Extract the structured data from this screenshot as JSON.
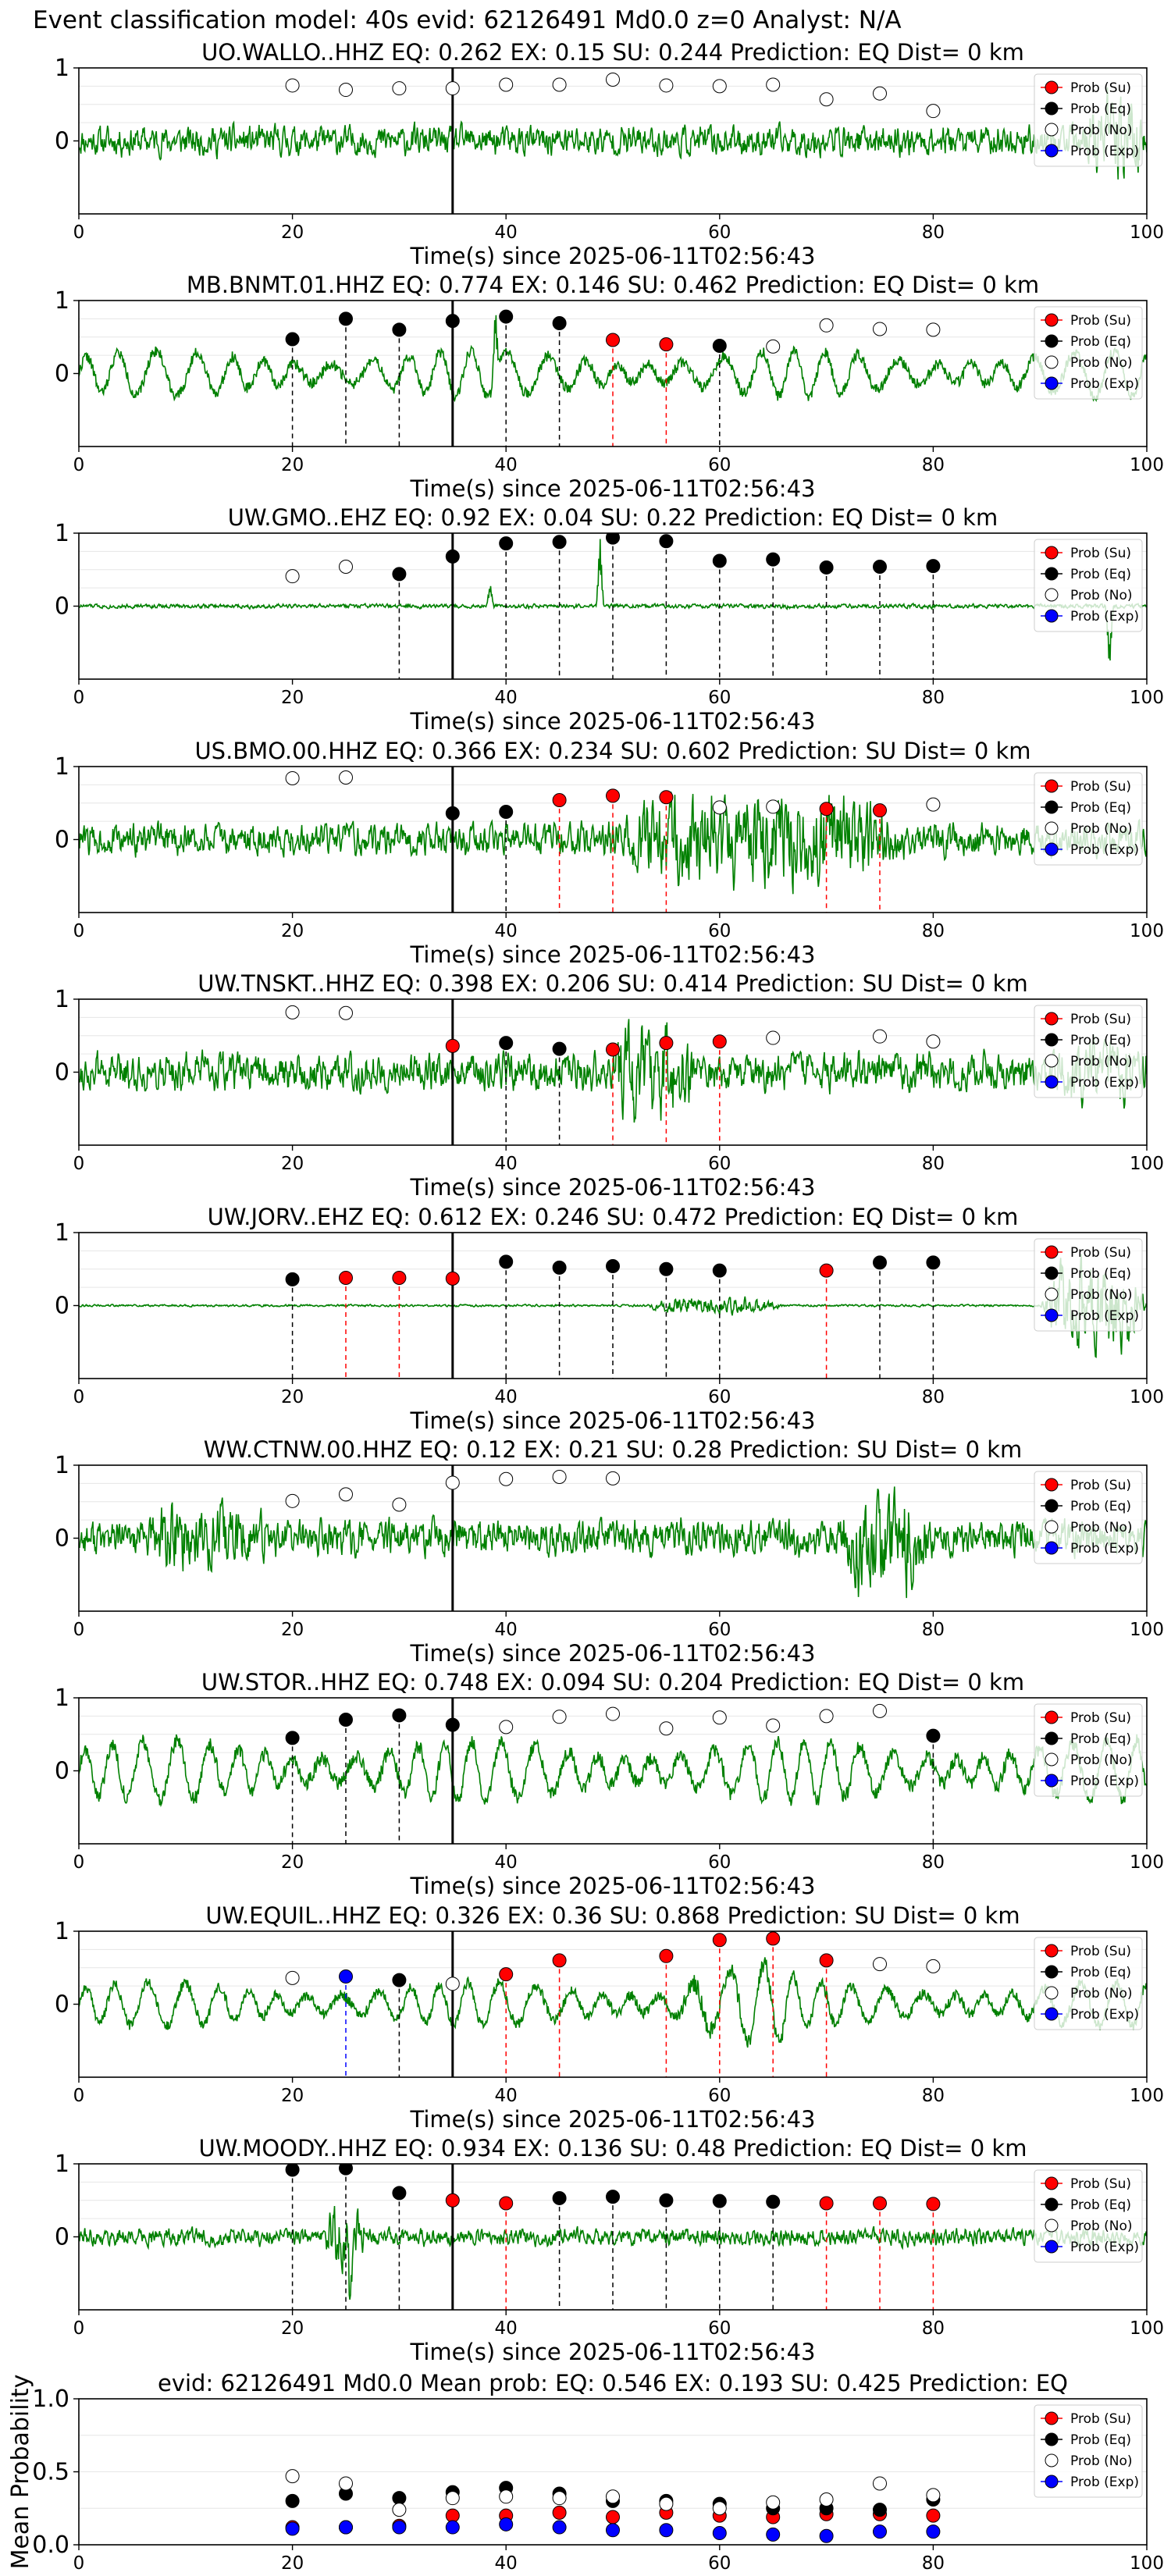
{
  "figure": {
    "title": "Event classification model: 40s evid: 62126491 Md0.0 z=0 Analyst: N/A"
  },
  "legend_labels": [
    "Prob (Su)",
    "Prob (Eq)",
    "Prob (No)",
    "Prob (Exp)"
  ],
  "colors": {
    "su": "#ff0000",
    "eq": "#000000",
    "no": "#ffffff",
    "exp": "#0000ff",
    "waveform": "#008000",
    "vline_su": "#ff0000",
    "vline_eq": "#000000",
    "vline_exp": "#0000ff"
  },
  "chart_data": [
    {
      "type": "scatter",
      "title": "UO.WALLO..HHZ   EQ: 0.262  EX: 0.15  SU: 0.244   Prediction: EQ    Dist= 0 km",
      "xlabel": "Time(s) since 2025-06-11T02:56:43",
      "xlim": [
        0,
        100
      ],
      "ylim": [
        -1,
        1
      ],
      "xticks": [
        0,
        20,
        40,
        60,
        80,
        100
      ],
      "yticks": [
        0,
        1
      ],
      "pick_time": 35,
      "waveform": {
        "kind": "noise",
        "amp": 0.28,
        "seed": 11,
        "burst": {
          "start": 94,
          "end": 100,
          "amp": 0.85
        }
      },
      "window_times": [
        20,
        25,
        30,
        35,
        40,
        45,
        50,
        55,
        60,
        65,
        70,
        75,
        80
      ],
      "window_labels": [
        "no",
        "no",
        "no",
        "no",
        "no",
        "no",
        "no",
        "no",
        "no",
        "no",
        "no",
        "no",
        "no"
      ],
      "window_probs": [
        0.76,
        0.7,
        0.72,
        0.72,
        0.77,
        0.77,
        0.84,
        0.76,
        0.75,
        0.77,
        0.57,
        0.65,
        0.41
      ]
    },
    {
      "type": "scatter",
      "title": "MB.BNMT.01.HHZ   EQ: 0.774  EX: 0.146  SU: 0.462   Prediction: EQ    Dist= 0 km",
      "xlabel": "Time(s) since 2025-06-11T02:56:43",
      "xlim": [
        0,
        100
      ],
      "ylim": [
        -1,
        1
      ],
      "xticks": [
        0,
        20,
        40,
        60,
        80,
        100
      ],
      "yticks": [
        0,
        1
      ],
      "pick_time": 35,
      "waveform": {
        "kind": "oscillation",
        "amp": 0.42,
        "seed": 22,
        "period": 3.3,
        "spike": {
          "t": 39,
          "amp": 0.95
        }
      },
      "window_times": [
        20,
        25,
        30,
        35,
        40,
        45,
        50,
        55,
        60,
        65,
        70,
        75,
        80
      ],
      "window_labels": [
        "eq",
        "eq",
        "eq",
        "eq",
        "eq",
        "eq",
        "su",
        "su",
        "eq",
        "no",
        "no",
        "no",
        "no"
      ],
      "window_probs": [
        0.47,
        0.75,
        0.6,
        0.72,
        0.78,
        0.69,
        0.46,
        0.4,
        0.38,
        0.37,
        0.66,
        0.61,
        0.6
      ]
    },
    {
      "type": "scatter",
      "title": "UW.GMO..EHZ   EQ: 0.92  EX: 0.04  SU: 0.22   Prediction: EQ    Dist= 0 km",
      "xlabel": "Time(s) since 2025-06-11T02:56:43",
      "xlim": [
        0,
        100
      ],
      "ylim": [
        -1,
        1
      ],
      "xticks": [
        0,
        20,
        40,
        60,
        80,
        100
      ],
      "yticks": [
        0,
        1
      ],
      "pick_time": 35,
      "waveform": {
        "kind": "noise",
        "amp": 0.04,
        "seed": 33,
        "spikes": [
          {
            "t": 48.8,
            "amp": 0.95
          },
          {
            "t": 96.5,
            "amp": -0.9
          },
          {
            "t": 38.5,
            "amp": 0.3
          }
        ]
      },
      "window_times": [
        20,
        25,
        30,
        35,
        40,
        45,
        50,
        55,
        60,
        65,
        70,
        75,
        80
      ],
      "window_labels": [
        "no",
        "no",
        "eq",
        "eq",
        "eq",
        "eq",
        "eq",
        "eq",
        "eq",
        "eq",
        "eq",
        "eq",
        "eq"
      ],
      "window_probs": [
        0.41,
        0.54,
        0.44,
        0.68,
        0.86,
        0.88,
        0.94,
        0.89,
        0.62,
        0.64,
        0.53,
        0.54,
        0.55
      ]
    },
    {
      "type": "scatter",
      "title": "US.BMO.00.HHZ   EQ: 0.366  EX: 0.234  SU: 0.602   Prediction: SU    Dist= 0 km",
      "xlabel": "Time(s) since 2025-06-11T02:56:43",
      "xlim": [
        0,
        100
      ],
      "ylim": [
        -1,
        1
      ],
      "xticks": [
        0,
        20,
        40,
        60,
        80,
        100
      ],
      "yticks": [
        0,
        1
      ],
      "pick_time": 35,
      "waveform": {
        "kind": "noise",
        "amp": 0.3,
        "seed": 44,
        "burst": {
          "start": 49,
          "end": 78,
          "amp": 0.85
        }
      },
      "window_times": [
        20,
        25,
        35,
        40,
        45,
        50,
        55,
        60,
        65,
        70,
        75,
        80
      ],
      "window_labels": [
        "no",
        "no",
        "eq",
        "eq",
        "su",
        "su",
        "su",
        "no",
        "no",
        "su",
        "su",
        "no"
      ],
      "window_probs": [
        0.84,
        0.85,
        0.36,
        0.38,
        0.54,
        0.6,
        0.58,
        0.44,
        0.45,
        0.42,
        0.4,
        0.48
      ]
    },
    {
      "type": "scatter",
      "title": "UW.TNSKT..HHZ   EQ: 0.398  EX: 0.206  SU: 0.414   Prediction: SU    Dist= 0 km",
      "xlabel": "Time(s) since 2025-06-11T02:56:43",
      "xlim": [
        0,
        100
      ],
      "ylim": [
        -1,
        1
      ],
      "xticks": [
        0,
        20,
        40,
        60,
        80,
        100
      ],
      "yticks": [
        0,
        1
      ],
      "pick_time": 35,
      "waveform": {
        "kind": "noise",
        "amp": 0.35,
        "seed": 55,
        "burst": {
          "start": 49.5,
          "end": 58,
          "amp": 0.9
        },
        "burst2": {
          "start": 91,
          "end": 100,
          "amp": 0.6
        }
      },
      "window_times": [
        20,
        25,
        35,
        40,
        45,
        50,
        55,
        60,
        65,
        75,
        80
      ],
      "window_labels": [
        "no",
        "no",
        "su",
        "eq",
        "eq",
        "su",
        "su",
        "su",
        "no",
        "no",
        "no"
      ],
      "window_probs": [
        0.82,
        0.81,
        0.36,
        0.4,
        0.32,
        0.31,
        0.4,
        0.42,
        0.47,
        0.49,
        0.42
      ]
    },
    {
      "type": "scatter",
      "title": "UW.JORV..EHZ   EQ: 0.612  EX: 0.246  SU: 0.472   Prediction: EQ    Dist= 0 km",
      "xlabel": "Time(s) since 2025-06-11T02:56:43",
      "xlim": [
        0,
        100
      ],
      "ylim": [
        -1,
        1
      ],
      "xticks": [
        0,
        20,
        40,
        60,
        80,
        100
      ],
      "yticks": [
        0,
        1
      ],
      "pick_time": 35,
      "waveform": {
        "kind": "noise",
        "amp": 0.02,
        "seed": 66,
        "burst": {
          "start": 53,
          "end": 66,
          "amp": 0.16
        },
        "burst2": {
          "start": 90,
          "end": 100,
          "amp": 0.85
        }
      },
      "window_times": [
        20,
        25,
        30,
        35,
        40,
        45,
        50,
        55,
        60,
        70,
        75,
        80
      ],
      "window_labels": [
        "eq",
        "su",
        "su",
        "su",
        "eq",
        "eq",
        "eq",
        "eq",
        "eq",
        "su",
        "eq",
        "eq"
      ],
      "window_probs": [
        0.36,
        0.38,
        0.38,
        0.37,
        0.6,
        0.52,
        0.54,
        0.5,
        0.48,
        0.48,
        0.59,
        0.59
      ]
    },
    {
      "type": "scatter",
      "title": "WW.CTNW.00.HHZ   EQ: 0.12  EX: 0.21  SU: 0.28   Prediction: SU    Dist= 0 km",
      "xlabel": "Time(s) since 2025-06-11T02:56:43",
      "xlim": [
        0,
        100
      ],
      "ylim": [
        -1,
        1
      ],
      "xticks": [
        0,
        20,
        40,
        60,
        80,
        100
      ],
      "yticks": [
        0,
        1
      ],
      "pick_time": 35,
      "waveform": {
        "kind": "noise",
        "amp": 0.33,
        "seed": 77,
        "burst": {
          "start": 6,
          "end": 18,
          "amp": 0.65
        },
        "burst2": {
          "start": 71,
          "end": 80,
          "amp": 0.95
        }
      },
      "window_times": [
        20,
        25,
        30,
        35,
        40,
        45,
        50
      ],
      "window_labels": [
        "no",
        "no",
        "no",
        "no",
        "no",
        "no",
        "no"
      ],
      "window_probs": [
        0.51,
        0.6,
        0.46,
        0.76,
        0.81,
        0.84,
        0.82
      ]
    },
    {
      "type": "scatter",
      "title": "UW.STOR..HHZ   EQ: 0.748  EX: 0.094  SU: 0.204   Prediction: EQ    Dist= 0 km",
      "xlabel": "Time(s) since 2025-06-11T02:56:43",
      "xlim": [
        0,
        100
      ],
      "ylim": [
        -1,
        1
      ],
      "xticks": [
        0,
        20,
        40,
        60,
        80,
        100
      ],
      "yticks": [
        0,
        1
      ],
      "pick_time": 35,
      "waveform": {
        "kind": "oscillation",
        "amp": 0.55,
        "seed": 88,
        "period": 2.8
      },
      "window_times": [
        20,
        25,
        30,
        35,
        40,
        45,
        50,
        55,
        60,
        65,
        70,
        75,
        80
      ],
      "window_labels": [
        "eq",
        "eq",
        "eq",
        "eq",
        "no",
        "no",
        "no",
        "no",
        "no",
        "no",
        "no",
        "no",
        "eq"
      ],
      "window_probs": [
        0.45,
        0.7,
        0.76,
        0.63,
        0.6,
        0.74,
        0.78,
        0.58,
        0.73,
        0.62,
        0.75,
        0.82,
        0.48
      ]
    },
    {
      "type": "scatter",
      "title": "UW.EQUIL..HHZ   EQ: 0.326  EX: 0.36  SU: 0.868   Prediction: SU    Dist= 0 km",
      "xlabel": "Time(s) since 2025-06-11T02:56:43",
      "xlim": [
        0,
        100
      ],
      "ylim": [
        -1,
        1
      ],
      "xticks": [
        0,
        20,
        40,
        60,
        80,
        100
      ],
      "yticks": [
        0,
        1
      ],
      "pick_time": 35,
      "waveform": {
        "kind": "oscillation",
        "amp": 0.4,
        "seed": 99,
        "period": 3.0,
        "burst": {
          "start": 55,
          "end": 68,
          "amp": 0.75
        }
      },
      "window_times": [
        20,
        25,
        30,
        35,
        40,
        45,
        55,
        60,
        65,
        70,
        75,
        80
      ],
      "window_labels": [
        "no",
        "exp",
        "eq",
        "no",
        "su",
        "su",
        "su",
        "su",
        "su",
        "su",
        "no",
        "no"
      ],
      "window_probs": [
        0.36,
        0.38,
        0.33,
        0.28,
        0.41,
        0.6,
        0.66,
        0.88,
        0.9,
        0.6,
        0.55,
        0.52
      ]
    },
    {
      "type": "scatter",
      "title": "UW.MOODY..HHZ   EQ: 0.934  EX: 0.136  SU: 0.48   Prediction: EQ    Dist= 0 km",
      "xlabel": "Time(s) since 2025-06-11T02:56:43",
      "xlim": [
        0,
        100
      ],
      "ylim": [
        -1,
        1
      ],
      "xticks": [
        0,
        20,
        40,
        60,
        80,
        100
      ],
      "yticks": [
        0,
        1
      ],
      "pick_time": 35,
      "waveform": {
        "kind": "noise",
        "amp": 0.16,
        "seed": 111,
        "burst": {
          "start": 23,
          "end": 27,
          "amp": 0.6
        },
        "spikes": [
          {
            "t": 25.4,
            "amp": -0.95
          }
        ]
      },
      "window_times": [
        20,
        25,
        30,
        35,
        40,
        45,
        50,
        55,
        60,
        65,
        70,
        75,
        80
      ],
      "window_labels": [
        "eq",
        "eq",
        "eq",
        "su",
        "su",
        "eq",
        "eq",
        "eq",
        "eq",
        "eq",
        "su",
        "su",
        "su"
      ],
      "window_probs": [
        0.92,
        0.94,
        0.6,
        0.5,
        0.46,
        0.53,
        0.55,
        0.5,
        0.49,
        0.48,
        0.46,
        0.46,
        0.45
      ]
    },
    {
      "type": "scatter",
      "title": "evid: 62126491  Md0.0   Mean prob:   EQ: 0.546  EX: 0.193  SU: 0.425   Prediction: EQ",
      "xlabel": "",
      "ylabel": "Mean Probability",
      "xlim": [
        0,
        100
      ],
      "ylim": [
        0,
        1
      ],
      "xticks": [
        0,
        20,
        40,
        60,
        80,
        100
      ],
      "yticks": [
        0.0,
        0.5,
        1.0
      ],
      "ytick_labels": [
        "0.0",
        "0.5",
        "1.0"
      ],
      "x": [
        20,
        25,
        30,
        35,
        40,
        45,
        50,
        55,
        60,
        65,
        70,
        75,
        80
      ],
      "series": [
        {
          "name": "Prob (Su)",
          "key": "su",
          "values": [
            0.12,
            0.12,
            0.13,
            0.2,
            0.2,
            0.22,
            0.19,
            0.22,
            0.2,
            0.19,
            0.21,
            0.21,
            0.2
          ]
        },
        {
          "name": "Prob (Eq)",
          "key": "eq",
          "values": [
            0.3,
            0.35,
            0.32,
            0.36,
            0.39,
            0.35,
            0.3,
            0.3,
            0.28,
            0.25,
            0.25,
            0.24,
            0.31
          ]
        },
        {
          "name": "Prob (No)",
          "key": "no",
          "values": [
            0.47,
            0.42,
            0.24,
            0.32,
            0.33,
            0.32,
            0.33,
            0.28,
            0.25,
            0.29,
            0.31,
            0.42,
            0.34
          ]
        },
        {
          "name": "Prob (Exp)",
          "key": "exp",
          "values": [
            0.11,
            0.12,
            0.12,
            0.12,
            0.14,
            0.12,
            0.1,
            0.1,
            0.08,
            0.07,
            0.06,
            0.09,
            0.09
          ]
        }
      ]
    }
  ]
}
